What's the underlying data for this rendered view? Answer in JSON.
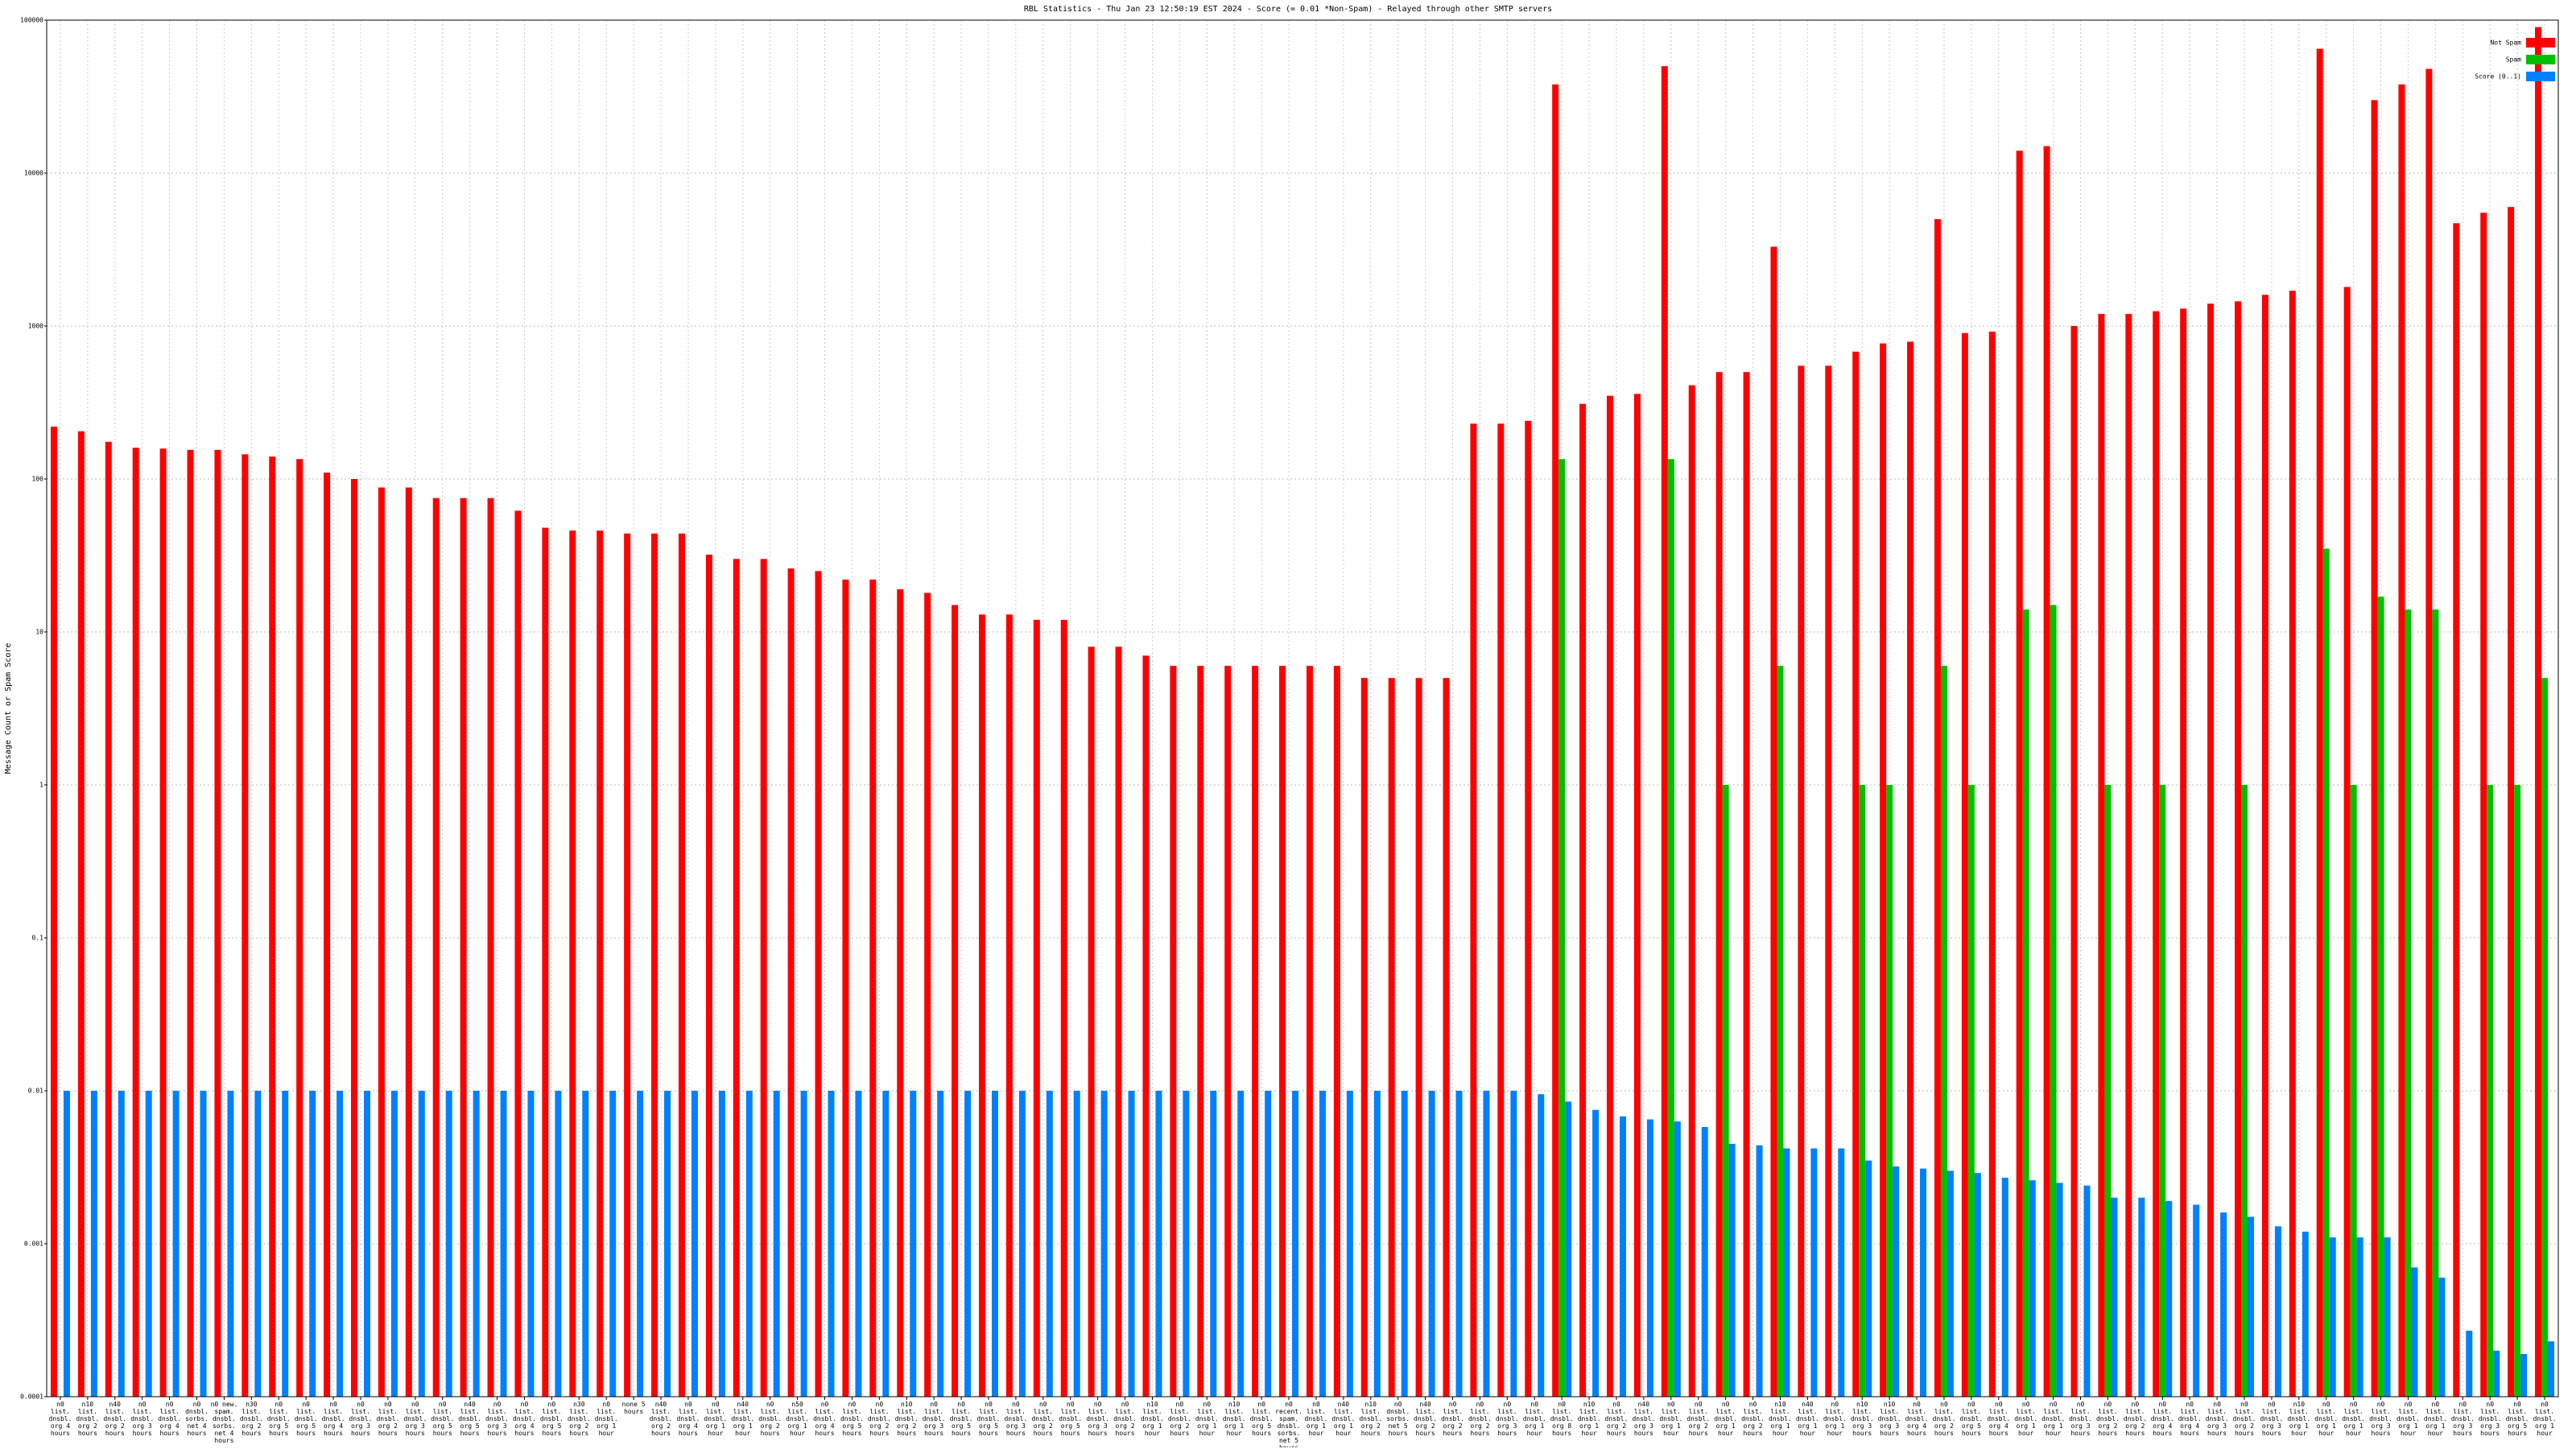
{
  "chart_data": {
    "type": "bar",
    "title": "RBL Statistics - Thu Jan 23 12:50:19 EST 2024 - Score (= 0.01 *Non-Spam) - Relayed through other SMTP servers",
    "y_label": "Message Count or Spam Score",
    "log_scale": true,
    "grid": true,
    "legend": "upper right",
    "ylim": [
      0.0001,
      100000
    ],
    "yticks": [
      0.0001,
      0.001,
      0.01,
      0.1,
      1,
      10,
      100,
      1000,
      10000,
      100000
    ],
    "categories": [
      "n0 list. dnsbl. org 4 hours",
      "n10 list. dnsbl. org 2 hours",
      "n40 list. dnsbl. org 2 hours",
      "n0 list. dnsbl. org 3 hours",
      "n0 list. dnsbl. org 4 hours",
      "n0 dnsbl. sorbs. net 4 hours",
      "n0 new. spam. dnsbl. sorbs. net 4 hours",
      "n30 list. dnsbl. org 2 hours",
      "n0 list. dnsbl. org 5 hours",
      "n0 list. dnsbl. org 5 hours",
      "n0 list. dnsbl. org 4 hours",
      "n0 list. dnsbl. org 3 hours",
      "n0 list. dnsbl. org 2 hours",
      "n0 list. dnsbl. org 3 hours",
      "n0 list. dnsbl. org 5 hours",
      "n40 list. dnsbl. org 5 hours",
      "n0 list. dnsbl. org 3 hours",
      "n0 list. dnsbl. org 4 hours",
      "n0 list. dnsbl. org 5 hours",
      "n30 list. dnsbl. org 2 hours",
      "n0 list. dnsbl. org 1 hour",
      "none 5 hours",
      "n40 list. dnsbl. org 2 hours",
      "n0 list. dnsbl. org 4 hours",
      "n0 list. dnsbl. org 1 hour",
      "n40 list. dnsbl. org 1 hour",
      "n0 list. dnsbl. org 2 hours",
      "n50 list. dnsbl. org 1 hour",
      "n0 list. dnsbl. org 4 hours",
      "n0 list. dnsbl. org 5 hours",
      "n0 list. dnsbl. org 2 hours",
      "n10 list. dnsbl. org 2 hours",
      "n0 list. dnsbl. org 3 hours",
      "n0 list. dnsbl. org 5 hours",
      "n0 list. dnsbl. org 5 hours",
      "n0 list. dnsbl. org 3 hours",
      "n0 list. dnsbl. org 2 hours",
      "n0 list. dnsbl. org 5 hours",
      "n0 list. dnsbl. org 3 hours",
      "n0 list. dnsbl. org 2 hours",
      "n10 list. dnsbl. org 1 hour",
      "n0 list. dnsbl. org 2 hours",
      "n0 list. dnsbl. org 1 hour",
      "n10 list. dnsbl. org 1 hour",
      "n0 list. dnsbl. org 5 hours",
      "n0 recent. spam. dnsbl. sorbs. net 5 hours",
      "n0 list. dnsbl. org 1 hour",
      "n40 list. dnsbl. org 1 hour",
      "n10 list. dnsbl. org 2 hours",
      "n0 dnsbl. sorbs. net 5 hours",
      "n40 list. dnsbl. org 2 hours",
      "n0 list. dnsbl. org 2 hours",
      "n0 list. dnsbl. org 2 hours",
      "n0 list. dnsbl. org 3 hours",
      "n0 list. dnsbl. org 1 hour",
      "n0 list. dnsbl. org 8 hours",
      "n10 list. dnsbl. org 1 hour",
      "n0 list. dnsbl. org 2 hours",
      "n40 list. dnsbl. org 3 hours",
      "n0 list. dnsbl. org 1 hour",
      "n0 list. dnsbl. org 2 hours",
      "n0 list. dnsbl. org 1 hour",
      "n0 list. dnsbl. org 2 hours",
      "n10 list. dnsbl. org 1 hour",
      "n40 list. dnsbl. org 1 hour",
      "n0 list. dnsbl. org 1 hour",
      "n10 list. dnsbl. org 3 hours",
      "n10 list. dnsbl. org 3 hours",
      "n0 list. dnsbl. org 4 hours",
      "n0 list. dnsbl. org 2 hours",
      "n0 list. dnsbl. org 5 hours",
      "n0 list. dnsbl. org 4 hours",
      "n0 list. dnsbl. org 1 hour",
      "n0 list. dnsbl. org 1 hour",
      "n0 list. dnsbl. org 3 hours",
      "n0 list. dnsbl. org 2 hours",
      "n0 list. dnsbl. org 2 hours",
      "n0 list. dnsbl. org 4 hours",
      "n0 list. dnsbl. org 4 hours",
      "n0 list. dnsbl. org 3 hours",
      "n0 list. dnsbl. org 2 hours",
      "n0 list. dnsbl. org 3 hours",
      "n10 list. dnsbl. org 1 hour",
      "n0 list. dnsbl. org 1 hour",
      "n0 list. dnsbl. org 1 hour",
      "n0 list. dnsbl. org 3 hours",
      "n0 list. dnsbl. org 1 hour",
      "n0 list. dnsbl. org 1 hour",
      "n0 list. dnsbl. org 3 hours",
      "n0 list. dnsbl. org 3 hours",
      "n0 list. dnsbl. org 5 hours",
      "n0 list. dnsbl. org 1 hour"
    ],
    "series": [
      {
        "name": "Not Spam",
        "color": "#ff0000",
        "values": [
          220,
          205,
          175,
          160,
          158,
          155,
          155,
          145,
          140,
          135,
          110,
          100,
          88,
          88,
          75,
          75,
          75,
          62,
          48,
          46,
          46,
          44,
          44,
          44,
          32,
          30,
          30,
          26,
          25,
          22,
          22,
          19,
          18,
          15,
          13,
          13,
          12,
          12,
          8,
          8,
          7,
          6,
          6,
          6,
          6,
          6,
          6,
          6,
          5,
          5,
          5,
          5,
          230,
          230,
          240,
          38000,
          310,
          350,
          360,
          50000,
          410,
          500,
          500,
          3300,
          550,
          550,
          680,
          770,
          790,
          5000,
          900,
          920,
          14000,
          15000,
          1000,
          1200,
          1200,
          1250,
          1300,
          1400,
          1450,
          1600,
          1700,
          65000,
          1800,
          30000,
          38000,
          48000,
          4700,
          5500,
          6000,
          90000
        ]
      },
      {
        "name": "Spam",
        "color": "#00c000",
        "values": [
          null,
          null,
          null,
          null,
          null,
          null,
          null,
          null,
          null,
          null,
          null,
          null,
          null,
          null,
          null,
          null,
          null,
          null,
          null,
          null,
          null,
          null,
          null,
          null,
          null,
          null,
          null,
          null,
          null,
          null,
          null,
          null,
          null,
          null,
          null,
          null,
          null,
          null,
          null,
          null,
          null,
          null,
          null,
          null,
          null,
          null,
          null,
          null,
          null,
          null,
          null,
          null,
          null,
          null,
          null,
          135,
          null,
          null,
          null,
          135,
          null,
          1,
          null,
          6,
          null,
          null,
          1,
          1,
          null,
          6,
          1,
          null,
          14,
          15,
          null,
          1,
          null,
          1,
          null,
          null,
          1,
          null,
          null,
          35,
          1,
          17,
          14,
          14,
          null,
          1,
          1,
          5
        ]
      },
      {
        "name": "Score (0..1)",
        "color": "#0080ff",
        "values": [
          0.01,
          0.01,
          0.01,
          0.01,
          0.01,
          0.01,
          0.01,
          0.01,
          0.01,
          0.01,
          0.01,
          0.01,
          0.01,
          0.01,
          0.01,
          0.01,
          0.01,
          0.01,
          0.01,
          0.01,
          0.01,
          0.01,
          0.01,
          0.01,
          0.01,
          0.01,
          0.01,
          0.01,
          0.01,
          0.01,
          0.01,
          0.01,
          0.01,
          0.01,
          0.01,
          0.01,
          0.01,
          0.01,
          0.01,
          0.01,
          0.01,
          0.01,
          0.01,
          0.01,
          0.01,
          0.01,
          0.01,
          0.01,
          0.01,
          0.01,
          0.01,
          0.01,
          0.01,
          0.01,
          0.0095,
          0.0085,
          0.0075,
          0.0068,
          0.0065,
          0.0063,
          0.0058,
          0.0045,
          0.0044,
          0.0042,
          0.0042,
          0.0042,
          0.0035,
          0.0032,
          0.0031,
          0.003,
          0.0029,
          0.0027,
          0.0026,
          0.0025,
          0.0024,
          0.002,
          0.002,
          0.0019,
          0.0018,
          0.0016,
          0.0015,
          0.0013,
          0.0012,
          0.0011,
          0.0011,
          0.0011,
          0.0007,
          0.0006,
          0.00027,
          0.0002,
          0.00019,
          0.00023
        ]
      }
    ]
  }
}
